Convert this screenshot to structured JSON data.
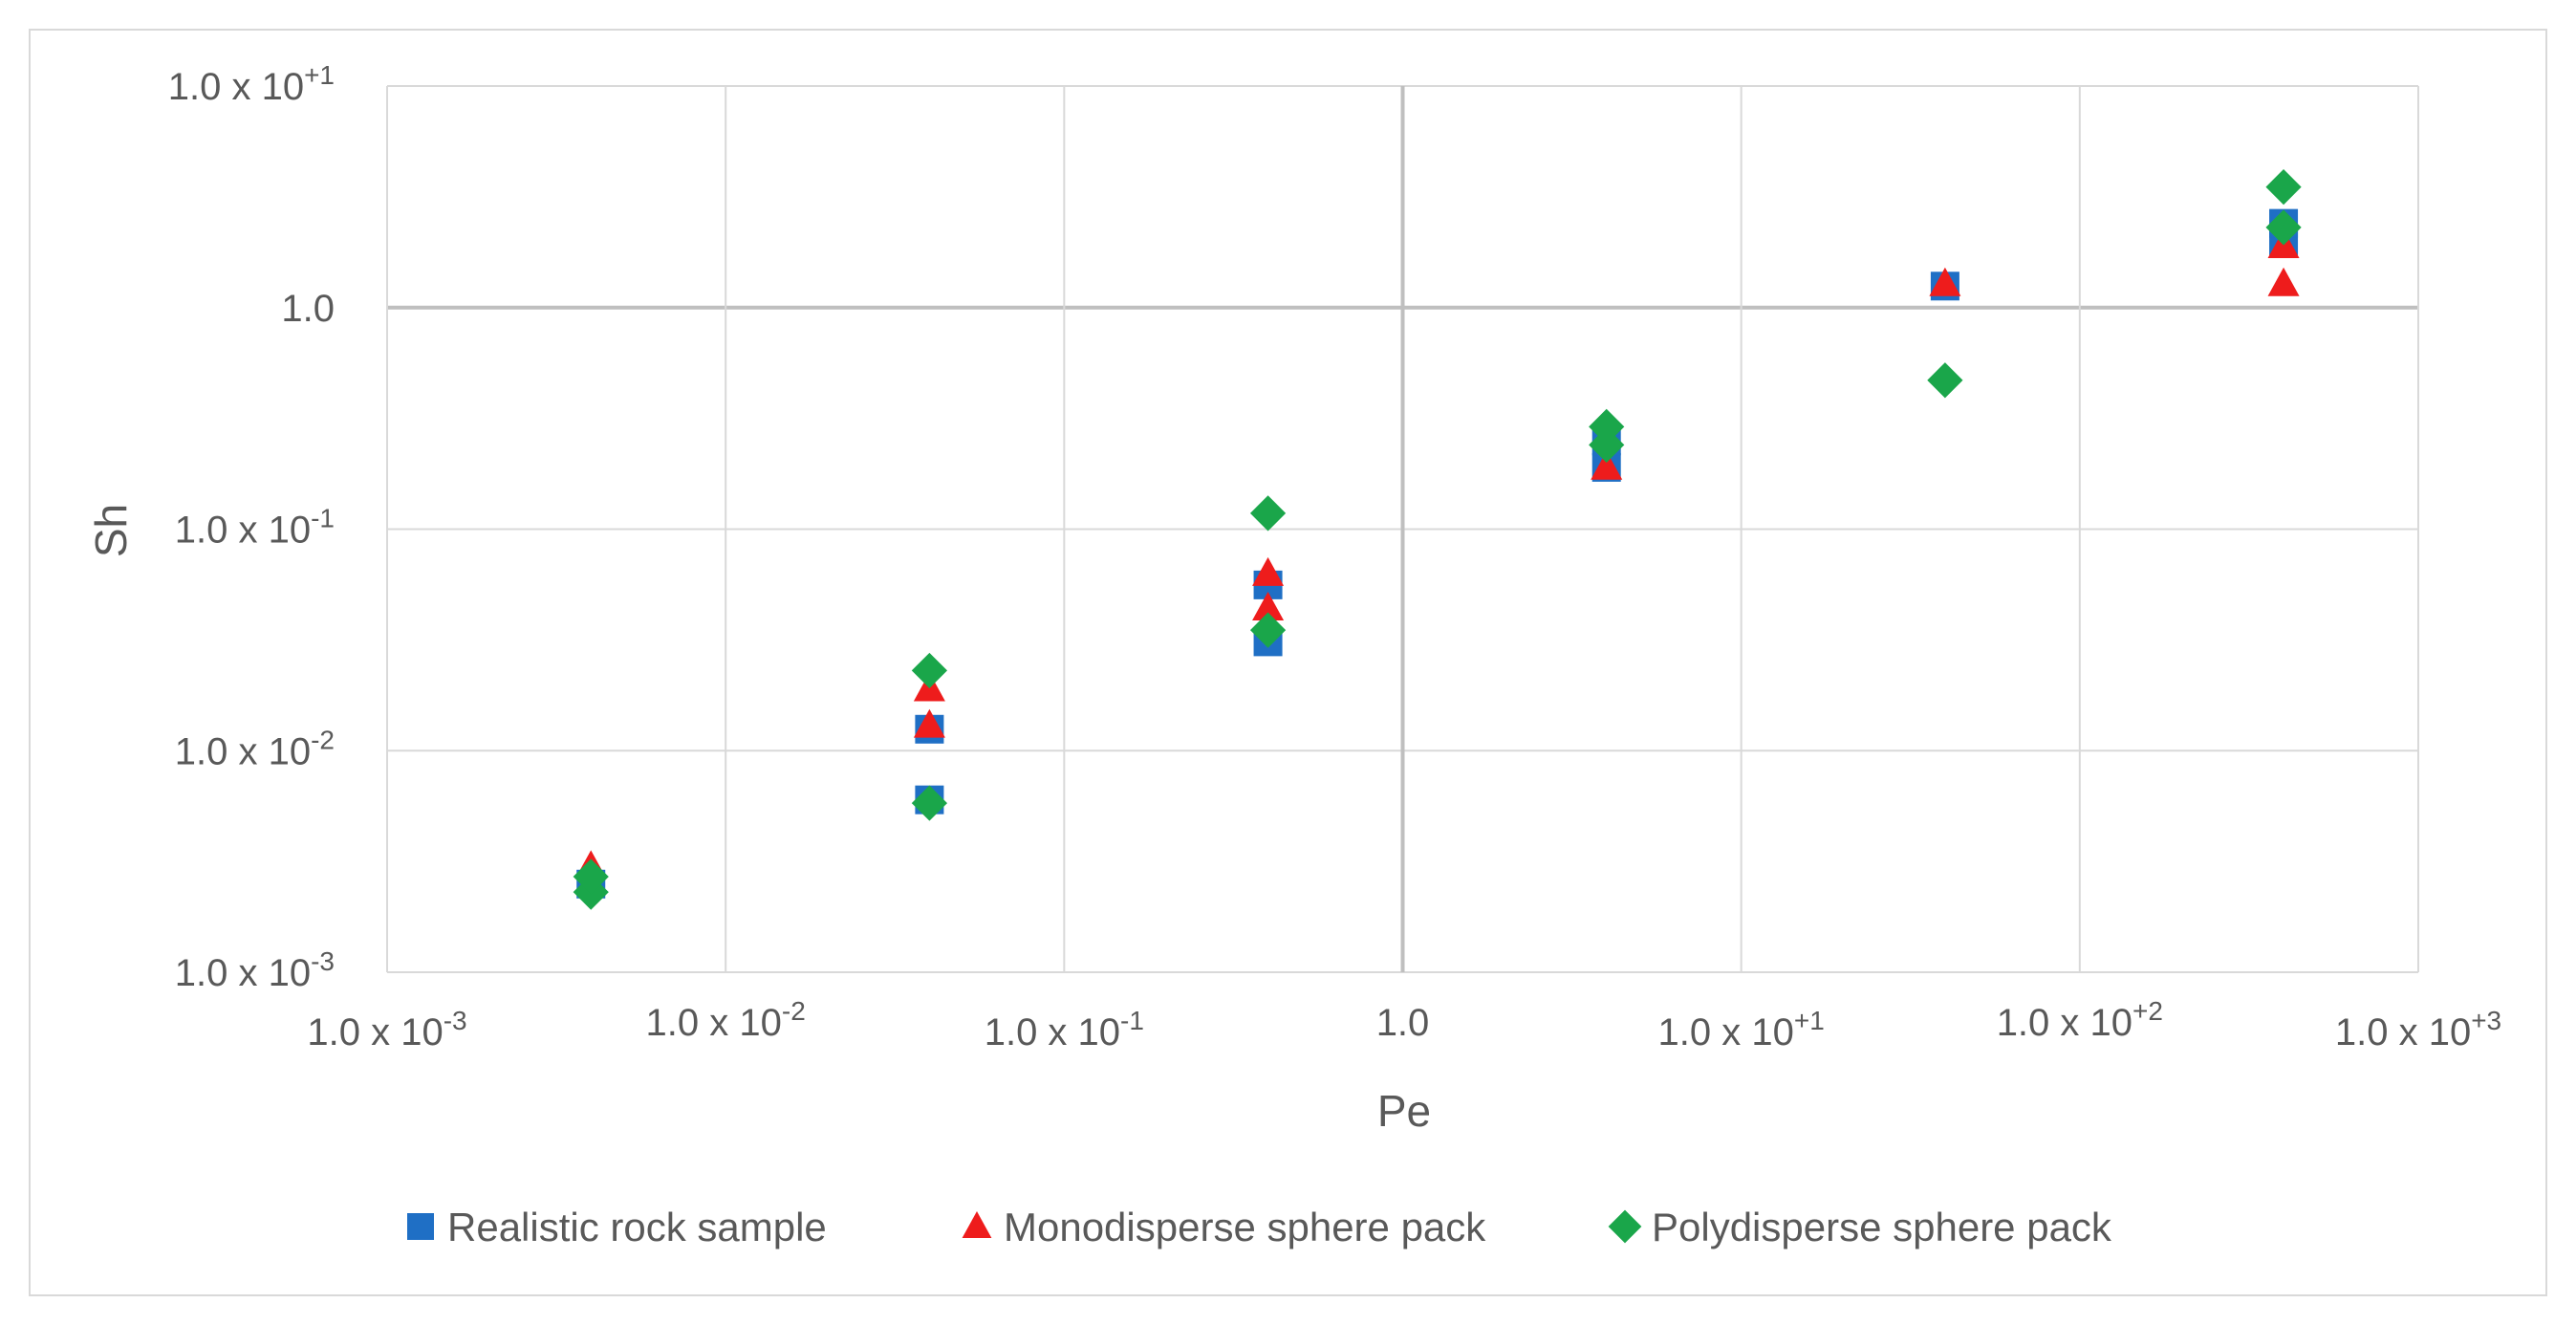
{
  "chart_data": {
    "type": "scatter",
    "title": "",
    "xlabel": "Pe",
    "ylabel": "Sh",
    "xscale": "log",
    "yscale": "log",
    "xlim": [
      0.001,
      1000
    ],
    "ylim": [
      0.001,
      10
    ],
    "grid": true,
    "legend_position": "bottom",
    "x_ticks": [
      {
        "value": 0.001,
        "base": "1.0 x 10",
        "exp": "-3"
      },
      {
        "value": 0.01,
        "base": "1.0 x 10",
        "exp": "-2"
      },
      {
        "value": 0.1,
        "base": "1.0 x 10",
        "exp": "-1"
      },
      {
        "value": 1,
        "base": "1.0",
        "exp": ""
      },
      {
        "value": 10,
        "base": "1.0 x 10",
        "exp": "+1"
      },
      {
        "value": 100,
        "base": "1.0 x 10",
        "exp": "+2"
      },
      {
        "value": 1000,
        "base": "1.0 x 10",
        "exp": "+3"
      }
    ],
    "y_ticks": [
      {
        "value": 0.001,
        "base": "1.0 x 10",
        "exp": "-3"
      },
      {
        "value": 0.01,
        "base": "1.0 x 10",
        "exp": "-2"
      },
      {
        "value": 0.1,
        "base": "1.0 x 10",
        "exp": "-1"
      },
      {
        "value": 1,
        "base": "1.0",
        "exp": ""
      },
      {
        "value": 10,
        "base": "1.0 x 10",
        "exp": "+1"
      }
    ],
    "series": [
      {
        "name": "Realistic rock sample",
        "marker": "square",
        "color": "#1f6fc5",
        "points": [
          {
            "x": 0.004,
            "y": 0.0025
          },
          {
            "x": 0.04,
            "y": 0.006
          },
          {
            "x": 0.04,
            "y": 0.0125
          },
          {
            "x": 0.4,
            "y": 0.031
          },
          {
            "x": 0.4,
            "y": 0.056
          },
          {
            "x": 4,
            "y": 0.19
          },
          {
            "x": 4,
            "y": 0.25
          },
          {
            "x": 40,
            "y": 1.25
          },
          {
            "x": 400,
            "y": 2.0
          },
          {
            "x": 400,
            "y": 2.4
          }
        ]
      },
      {
        "name": "Monodisperse sphere pack",
        "marker": "triangle",
        "color": "#ee1c1c",
        "points": [
          {
            "x": 0.004,
            "y": 0.003
          },
          {
            "x": 0.04,
            "y": 0.013
          },
          {
            "x": 0.04,
            "y": 0.019
          },
          {
            "x": 0.4,
            "y": 0.044
          },
          {
            "x": 0.4,
            "y": 0.063
          },
          {
            "x": 4,
            "y": 0.19
          },
          {
            "x": 40,
            "y": 1.28
          },
          {
            "x": 400,
            "y": 1.28
          },
          {
            "x": 400,
            "y": 1.9
          }
        ]
      },
      {
        "name": "Polydisperse sphere pack",
        "marker": "diamond",
        "color": "#1aa64a",
        "points": [
          {
            "x": 0.004,
            "y": 0.0023
          },
          {
            "x": 0.004,
            "y": 0.0027
          },
          {
            "x": 0.04,
            "y": 0.0058
          },
          {
            "x": 0.04,
            "y": 0.023
          },
          {
            "x": 0.4,
            "y": 0.035
          },
          {
            "x": 0.4,
            "y": 0.118
          },
          {
            "x": 4,
            "y": 0.24
          },
          {
            "x": 4,
            "y": 0.29
          },
          {
            "x": 40,
            "y": 0.47
          },
          {
            "x": 400,
            "y": 2.3
          },
          {
            "x": 400,
            "y": 3.5
          }
        ]
      }
    ]
  }
}
